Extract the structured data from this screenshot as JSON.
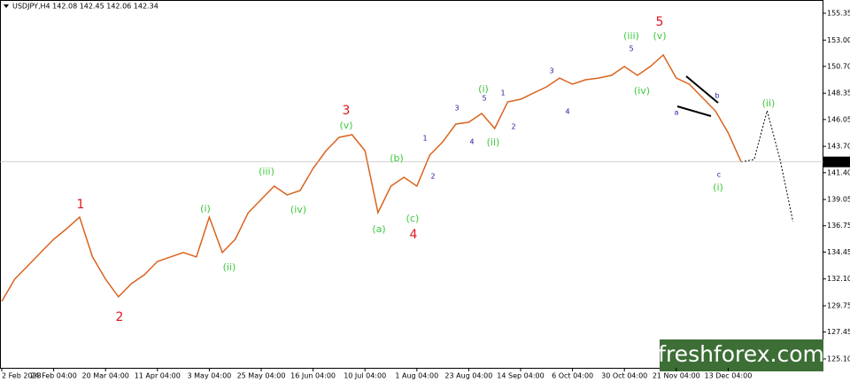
{
  "chart_data": {
    "type": "line",
    "symbol_label": "USDJPY,H4 142.08 142.45 142.06 142.34",
    "watermark": "freshforex.com",
    "categories": [
      "2 Feb 2023",
      null,
      null,
      null,
      "24 Feb 04:00",
      null,
      null,
      null,
      "20 Mar 04:00",
      null,
      null,
      null,
      "11 Apr 04:00",
      null,
      null,
      null,
      "3 May 04:00",
      null,
      null,
      null,
      "25 May 04:00",
      null,
      null,
      null,
      "16 Jun 04:00",
      null,
      null,
      null,
      "10 Jul 04:00",
      null,
      null,
      null,
      "1 Aug 04:00",
      null,
      null,
      null,
      "23 Aug 04:00",
      null,
      null,
      null,
      "14 Sep 04:00",
      null,
      null,
      null,
      "6 Oct 04:00",
      null,
      null,
      null,
      "30 Oct 04:00",
      null,
      null,
      null,
      "21 Nov 04:00",
      null,
      null,
      null,
      "13 Dec 04:00",
      null,
      null,
      null,
      null,
      null
    ],
    "series": [
      {
        "name": "USDJPY",
        "color": "#d9641e",
        "values": [
          130.14,
          132.08,
          133.24,
          134.41,
          135.57,
          136.5,
          137.51,
          134.02,
          132.08,
          130.53,
          131.69,
          132.47,
          133.63,
          134.02,
          134.41,
          134.02,
          137.51,
          134.41,
          135.57,
          137.9,
          139.06,
          140.22,
          139.45,
          139.83,
          141.77,
          143.32,
          144.49,
          144.72,
          143.32,
          137.9,
          140.22,
          141.0,
          140.22,
          142.94,
          144.1,
          145.65,
          145.81,
          146.58,
          145.26,
          147.59,
          147.82,
          148.37,
          148.91,
          149.68,
          149.14,
          149.53,
          149.68,
          149.92,
          150.69,
          149.92,
          150.69,
          151.7,
          149.68,
          149.14,
          147.98,
          146.82,
          144.88,
          142.34,
          null,
          null,
          null,
          null
        ]
      },
      {
        "name": "Forecast",
        "color": "#000000",
        "dashed": true,
        "values": [
          null,
          null,
          null,
          null,
          null,
          null,
          null,
          null,
          null,
          null,
          null,
          null,
          null,
          null,
          null,
          null,
          null,
          null,
          null,
          null,
          null,
          null,
          null,
          null,
          null,
          null,
          null,
          null,
          null,
          null,
          null,
          null,
          null,
          null,
          null,
          null,
          null,
          null,
          null,
          null,
          null,
          null,
          null,
          null,
          null,
          null,
          null,
          null,
          null,
          null,
          null,
          null,
          null,
          null,
          null,
          null,
          null,
          142.34,
          142.55,
          146.82,
          142.55,
          137.12
        ]
      }
    ],
    "ylim": [
      124.32,
      156.51
    ],
    "yticks": [
      {
        "value": 125.1,
        "label": "125.10"
      },
      {
        "value": 127.45,
        "label": "127.45"
      },
      {
        "value": 129.75,
        "label": "129.75"
      },
      {
        "value": 132.1,
        "label": "132.10"
      },
      {
        "value": 134.45,
        "label": "134.45"
      },
      {
        "value": 136.75,
        "label": "136.75"
      },
      {
        "value": 139.05,
        "label": "139.05"
      },
      {
        "value": 141.4,
        "label": "141.40"
      },
      {
        "value": 143.7,
        "label": "143.70"
      },
      {
        "value": 146.05,
        "label": "146.05"
      },
      {
        "value": 148.35,
        "label": "148.35"
      },
      {
        "value": 150.7,
        "label": "150.70"
      },
      {
        "value": 153.0,
        "label": "153.00"
      },
      {
        "value": 155.35,
        "label": "155.35"
      }
    ],
    "annotations": [
      "1",
      "2",
      "3",
      "4",
      "5",
      "(i)",
      "(ii)",
      "(iii)",
      "(iv)",
      "(v)",
      "(a)",
      "(b)",
      "(c)",
      "(i)",
      "(ii)",
      "(iii)",
      "(iv)",
      "(v)",
      "(i)",
      "(ii)",
      "1",
      "2",
      "3",
      "4",
      "5",
      "1",
      "2",
      "3",
      "4",
      "5",
      "a",
      "b",
      "c"
    ]
  }
}
